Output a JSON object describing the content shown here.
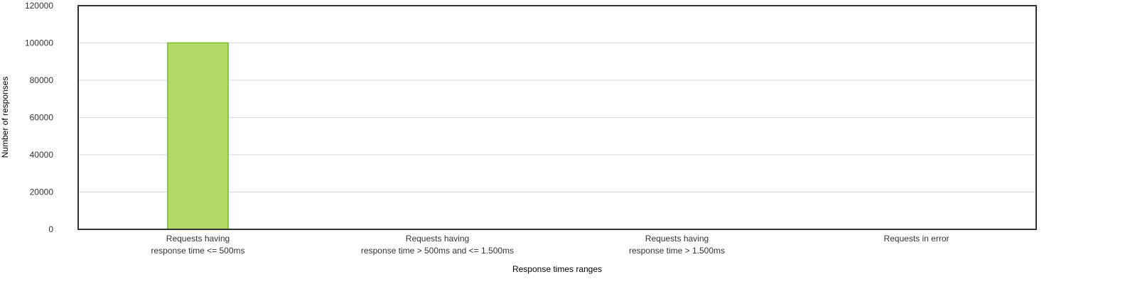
{
  "chart_data": {
    "type": "bar",
    "title": "",
    "xlabel": "Response times ranges",
    "ylabel": "Number of responses",
    "categories": [
      [
        "Requests having",
        "response time <= 500ms"
      ],
      [
        "Requests having",
        "response time > 500ms and <= 1.500ms"
      ],
      [
        "Requests having",
        "response time > 1.500ms"
      ],
      [
        "Requests in error"
      ]
    ],
    "values": [
      100000,
      0,
      0,
      0
    ],
    "ylim": [
      0,
      120000
    ],
    "yticks": [
      "0",
      "20000",
      "40000",
      "60000",
      "80000",
      "100000",
      "120000"
    ],
    "grid": true,
    "legend": "none",
    "colors": {
      "bar_fill": "#b3d966",
      "bar_stroke": "#8cc63f",
      "frame": "#333333",
      "grid": "#d9d9d9",
      "text": "#333333"
    }
  }
}
